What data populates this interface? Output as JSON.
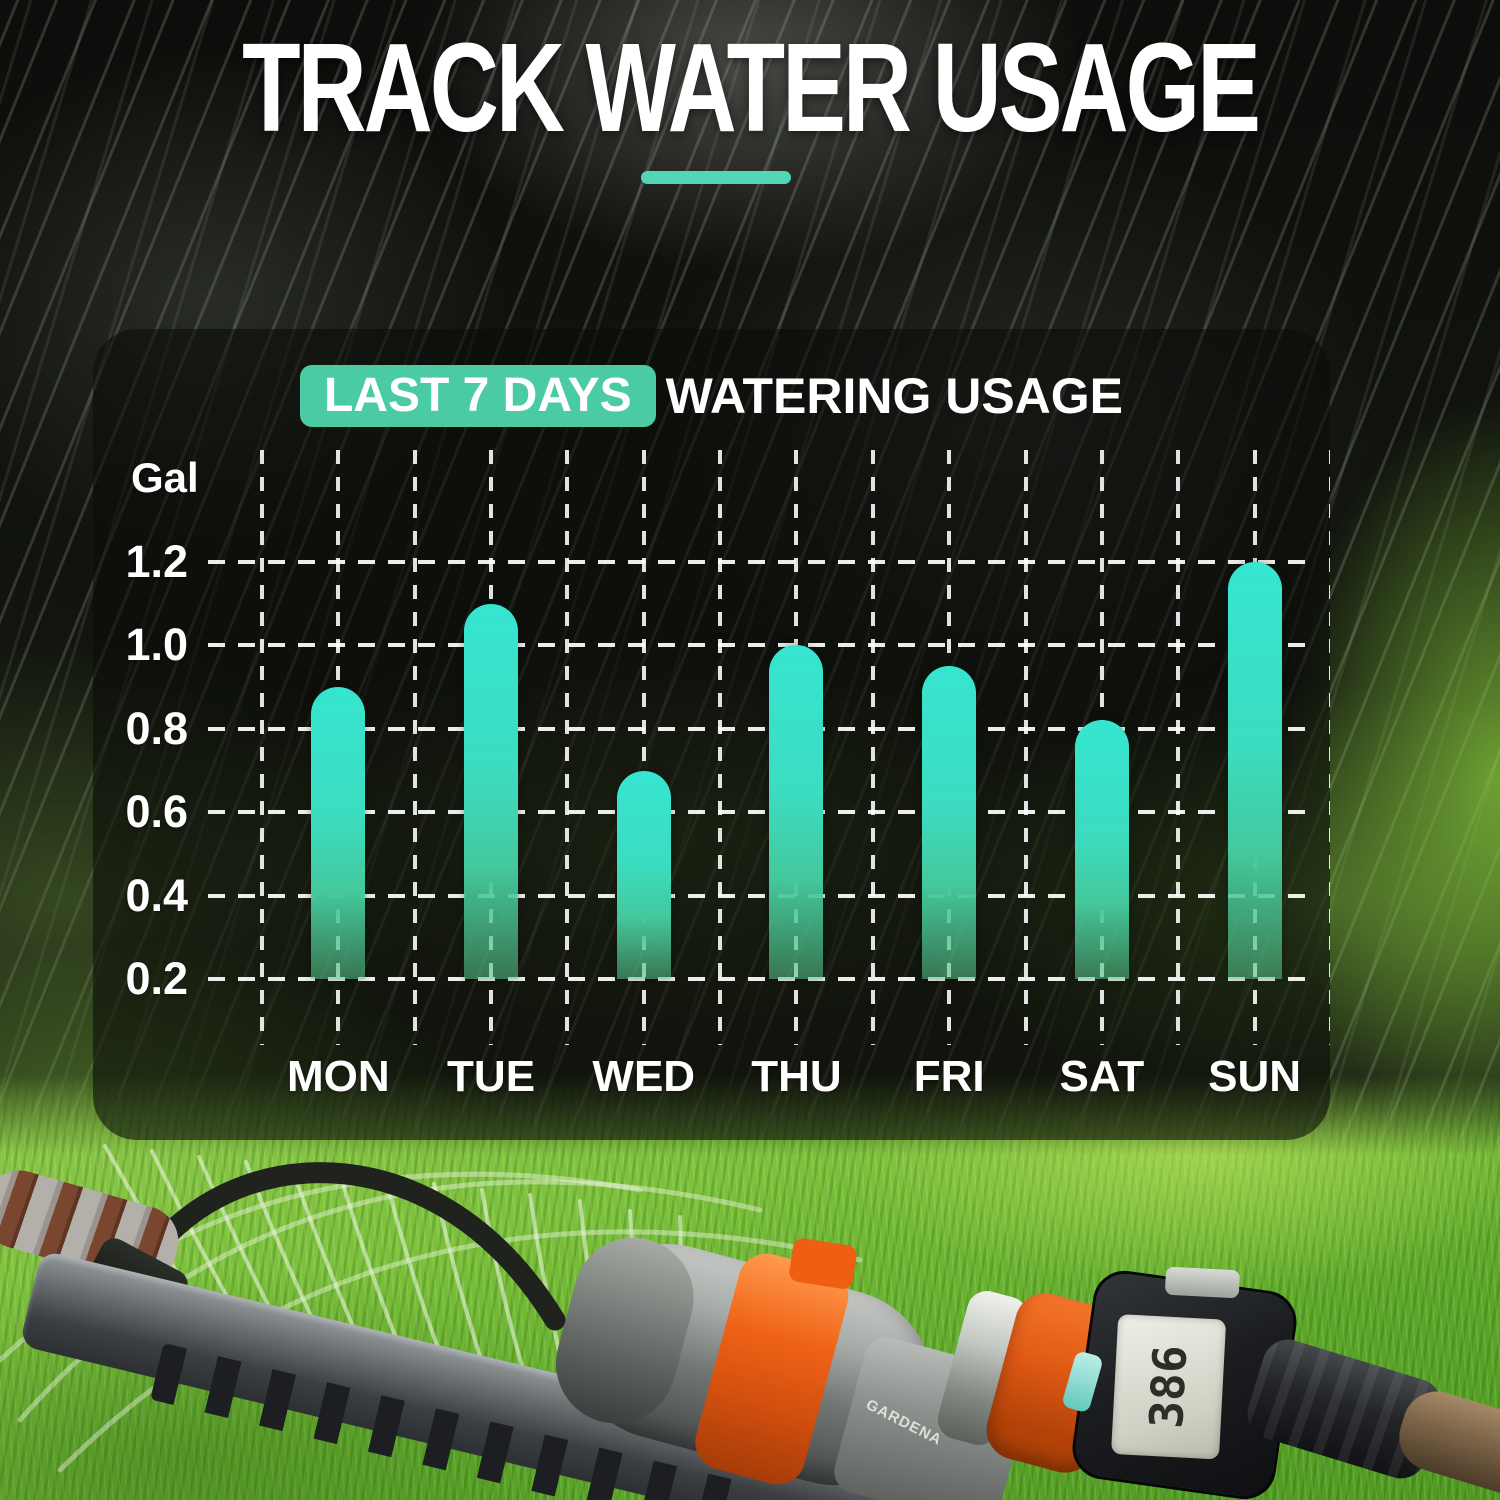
{
  "header": {
    "title": "TRACK WATER USAGE"
  },
  "chart_panel": {
    "title_highlight": "LAST 7 DAYS",
    "title_rest": "WATERING USAGE",
    "unit_label": "Gal"
  },
  "chart_data": {
    "type": "bar",
    "title": "LAST 7 DAYS WATERING USAGE",
    "ylabel": "Gal",
    "categories": [
      "MON",
      "TUE",
      "WED",
      "THU",
      "FRI",
      "SAT",
      "SUN"
    ],
    "values": [
      0.9,
      1.1,
      0.7,
      1.0,
      0.95,
      0.82,
      1.2
    ],
    "y_ticks": [
      1.2,
      1.0,
      0.8,
      0.6,
      0.4,
      0.2
    ],
    "baseline": 0.2,
    "ylim": [
      0.2,
      1.3
    ],
    "grid": "dashed",
    "legend": "none",
    "bar_color_top": "#36e5d0",
    "bar_color_bottom": "rgba(88,196,136,0.55)"
  },
  "photo": {
    "meter_display": "386",
    "brand_label": "GARDENA"
  },
  "colors": {
    "accent_teal": "#4bcba4",
    "underline_teal": "#52d7b6",
    "bar_turquoise": "#36e5d0",
    "grass_green": "#7cc23a",
    "panel_bg": "rgba(10,12,9,0.58)"
  }
}
